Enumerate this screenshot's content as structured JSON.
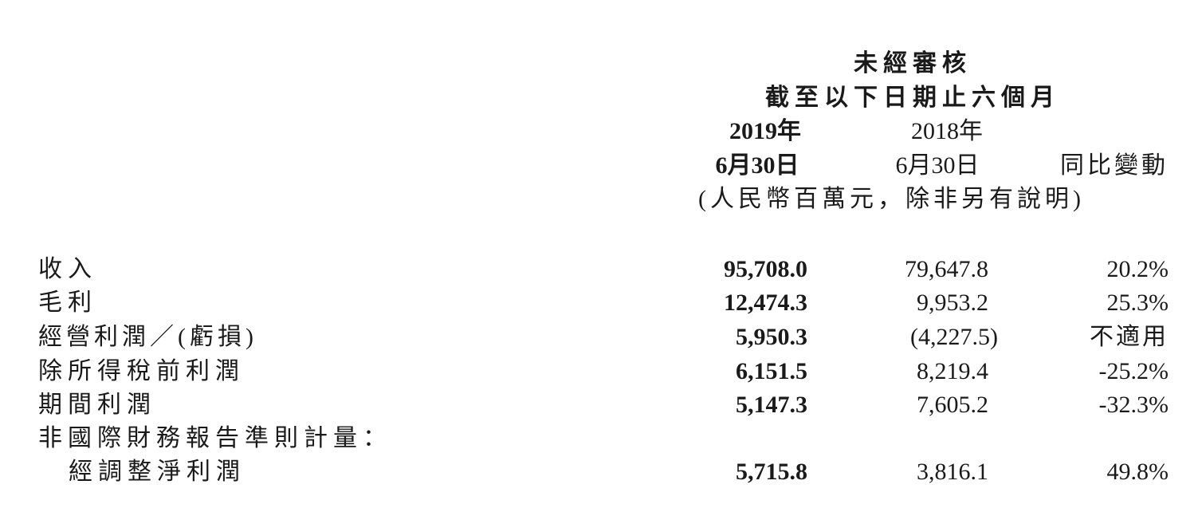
{
  "header": {
    "status": "未經審核",
    "period": "截至以下日期止六個月",
    "col1_year": "2019年",
    "col1_date": "6月30日",
    "col2_year": "2018年",
    "col2_date": "6月30日",
    "col3": "同比變動",
    "unit_note": "(人民幣百萬元，除非另有說明)"
  },
  "rows": [
    {
      "label": "收入",
      "v2019": "95,708.0",
      "v2018": "79,647.8",
      "change": "20.2%"
    },
    {
      "label": "毛利",
      "v2019": "12,474.3",
      "v2018": "9,953.2",
      "change": "25.3%"
    },
    {
      "label": "經營利潤／(虧損)",
      "v2019": "5,950.3",
      "v2018": "(4,227.5)",
      "change": "不適用"
    },
    {
      "label": "除所得稅前利潤",
      "v2019": "6,151.5",
      "v2018": "8,219.4",
      "change": "-25.2%"
    },
    {
      "label": "期間利潤",
      "v2019": "5,147.3",
      "v2018": "7,605.2",
      "change": "-32.3%"
    },
    {
      "label": "非國際財務報告準則計量："
    },
    {
      "label": "經調整淨利潤",
      "v2019": "5,715.8",
      "v2018": "3,816.1",
      "change": "49.8%"
    }
  ]
}
